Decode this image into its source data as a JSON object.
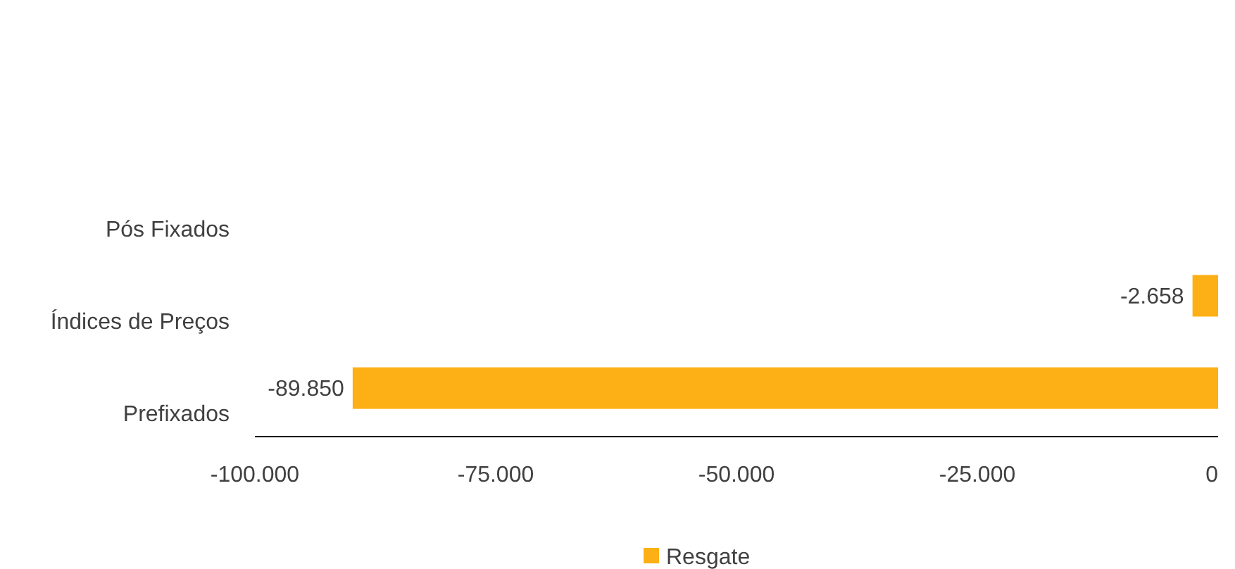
{
  "chart_data": {
    "type": "bar",
    "orientation": "horizontal",
    "categories": [
      "Pós Fixados",
      "Índices de Preços",
      "Prefixados"
    ],
    "series": [
      {
        "name": "Resgate",
        "color": "#fdb015",
        "values": [
          null,
          -2658,
          -89850
        ],
        "value_labels": [
          null,
          "-2.658",
          "-89.850"
        ]
      }
    ],
    "xlim": [
      -100000,
      0
    ],
    "xticks": [
      {
        "value": -100000,
        "label": "-100.000"
      },
      {
        "value": -75000,
        "label": "-75.000"
      },
      {
        "value": -50000,
        "label": "-50.000"
      },
      {
        "value": -25000,
        "label": "-25.000"
      },
      0
    ],
    "grid": false,
    "legend": "bottom"
  }
}
